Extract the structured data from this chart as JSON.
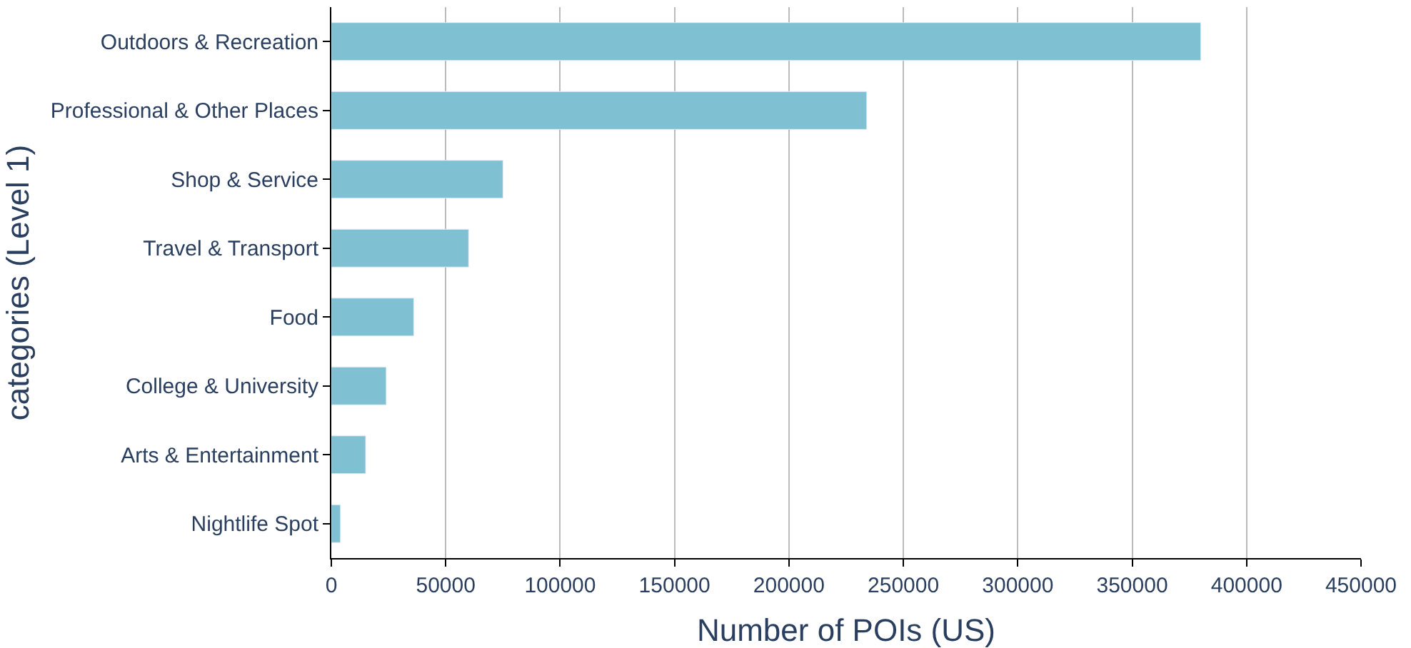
{
  "chart_data": {
    "type": "bar",
    "orientation": "horizontal",
    "categories": [
      "Outdoors & Recreation",
      "Professional & Other Places",
      "Shop & Service",
      "Travel & Transport",
      "Food",
      "College & University",
      "Arts & Entertainment",
      "Nightlife Spot"
    ],
    "values": [
      380000,
      234000,
      75000,
      60000,
      36000,
      24000,
      15000,
      4000
    ],
    "color": "#7fc0d3",
    "xlabel": "Number of POIs (US)",
    "ylabel": "categories (Level 1)",
    "xlim": [
      0,
      450000
    ],
    "xticks": [
      0,
      50000,
      100000,
      150000,
      200000,
      250000,
      300000,
      350000,
      400000,
      450000
    ],
    "grid": "x",
    "legend": false
  }
}
